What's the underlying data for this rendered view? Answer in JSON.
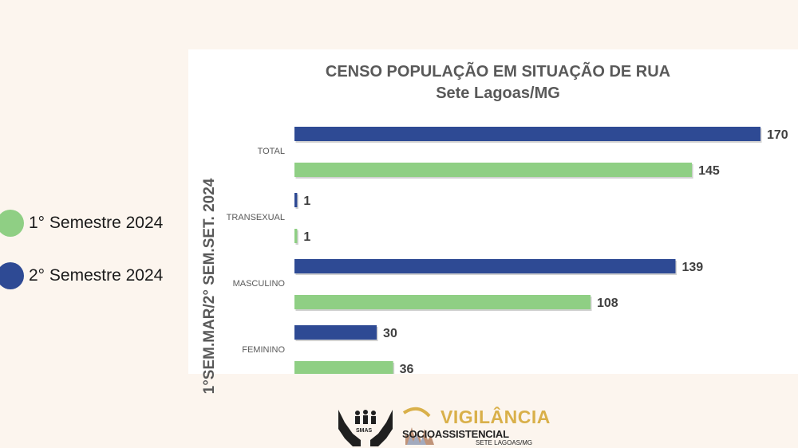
{
  "legend": [
    {
      "label": "1° Semestre 2024",
      "color": "#8fcf84"
    },
    {
      "label": "2° Semestre 2024",
      "color": "#2e4a94"
    }
  ],
  "chart_data": {
    "type": "bar",
    "orientation": "horizontal",
    "title": "CENSO POPULAÇÃO EM SITUAÇÃO DE RUA",
    "subtitle": "Sete Lagoas/MG",
    "ylabel": "1°SEM.MAR/2° SEM.SET. 2024",
    "xlabel": "",
    "categories": [
      "TOTAL",
      "TRANSEXUAL",
      "MASCULINO",
      "FEMININO"
    ],
    "series": [
      {
        "name": "2° Semestre 2024",
        "color": "#2e4a94",
        "values": [
          170,
          1,
          139,
          30
        ]
      },
      {
        "name": "1° Semestre 2024",
        "color": "#8fcf84",
        "values": [
          145,
          1,
          108,
          36
        ]
      }
    ],
    "xlim": [
      0,
      170
    ],
    "grid": false,
    "legend_position": "left"
  },
  "logos": {
    "smas": "SMAS",
    "vigilancia_title": "VIGILÂNCIA",
    "vigilancia_subtitle": "SOCIOASSISTENCIAL",
    "vigilancia_place": "SETE LAGOAS/MG"
  }
}
